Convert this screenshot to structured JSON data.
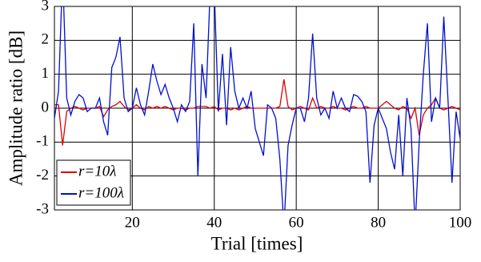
{
  "chart_data": {
    "type": "line",
    "x_label": "Trial [times]",
    "y_label": "Amplitude ratio [dB]",
    "x": [
      1,
      2,
      3,
      4,
      5,
      6,
      7,
      8,
      9,
      10,
      11,
      12,
      13,
      14,
      15,
      16,
      17,
      18,
      19,
      20,
      21,
      22,
      23,
      24,
      25,
      26,
      27,
      28,
      29,
      30,
      31,
      32,
      33,
      34,
      35,
      36,
      37,
      38,
      39,
      40,
      41,
      42,
      43,
      44,
      45,
      46,
      47,
      48,
      49,
      50,
      51,
      52,
      53,
      54,
      55,
      56,
      57,
      58,
      59,
      60,
      61,
      62,
      63,
      64,
      65,
      66,
      67,
      68,
      69,
      70,
      71,
      72,
      73,
      74,
      75,
      76,
      77,
      78,
      79,
      80,
      81,
      82,
      83,
      84,
      85,
      86,
      87,
      88,
      89,
      90,
      91,
      92,
      93,
      94,
      95,
      96,
      97,
      98,
      99,
      100
    ],
    "series": [
      {
        "name": "r=10λ",
        "color": "#e00000",
        "values": [
          0.1,
          0.1,
          -1.1,
          -0.1,
          0.0,
          0.05,
          0.0,
          -0.05,
          0.0,
          0.0,
          0.0,
          0.05,
          -0.25,
          -0.05,
          0.05,
          0.1,
          0.2,
          0.05,
          -0.05,
          0.0,
          0.1,
          0.0,
          -0.05,
          0.05,
          0.0,
          0.05,
          0.0,
          0.05,
          0.0,
          -0.05,
          0.0,
          0.0,
          -0.05,
          0.0,
          0.0,
          0.05,
          0.05,
          0.05,
          0.0,
          0.05,
          -0.05,
          0.0,
          0.0,
          -0.05,
          0.0,
          -0.05,
          0.0,
          0.05,
          0.0,
          0.0,
          0.0,
          0.0,
          0.0,
          0.0,
          0.0,
          0.05,
          0.85,
          0.05,
          -0.05,
          0.0,
          0.05,
          0.0,
          -0.05,
          0.3,
          0.0,
          0.05,
          0.0,
          0.0,
          0.05,
          0.0,
          0.0,
          -0.05,
          0.0,
          0.05,
          0.0,
          0.0,
          0.05,
          0.0,
          0.0,
          0.0,
          0.1,
          0.2,
          0.1,
          0.0,
          -0.05,
          0.05,
          0.0,
          -0.3,
          0.0,
          -0.8,
          -0.2,
          0.0,
          0.1,
          0.3,
          0.0,
          -0.05,
          0.0,
          0.05,
          0.0,
          -0.05
        ]
      },
      {
        "name": "r=100λ",
        "color": "#0010d0",
        "values": [
          -0.3,
          0.5,
          4.0,
          0.3,
          -0.2,
          0.2,
          0.4,
          0.3,
          -0.1,
          0.0,
          0.0,
          0.3,
          -0.4,
          -0.8,
          1.2,
          1.5,
          2.1,
          0.3,
          -0.1,
          0.0,
          0.6,
          0.1,
          -0.2,
          0.5,
          1.3,
          0.8,
          0.4,
          0.7,
          0.3,
          0.0,
          -0.4,
          0.1,
          -0.1,
          0.2,
          2.5,
          -2.0,
          1.3,
          0.3,
          3.5,
          3.5,
          -0.1,
          1.6,
          -0.5,
          1.8,
          0.5,
          0.0,
          0.3,
          0.0,
          0.5,
          -0.6,
          -1.0,
          -1.4,
          0.1,
          0.0,
          -0.3,
          -1.5,
          -3.5,
          -1.1,
          -0.5,
          0.0,
          0.0,
          -0.4,
          0.3,
          2.2,
          0.3,
          -0.2,
          0.0,
          -0.3,
          0.5,
          0.0,
          0.3,
          0.0,
          -0.1,
          0.4,
          0.35,
          0.2,
          -0.1,
          -2.2,
          -0.5,
          0.0,
          -0.3,
          -0.6,
          -1.3,
          -1.8,
          -0.2,
          -2.0,
          0.3,
          -0.6,
          -3.5,
          -1.0,
          1.0,
          2.5,
          -0.4,
          0.3,
          0.0,
          2.7,
          0.3,
          -2.2,
          -0.1,
          -0.9
        ]
      }
    ],
    "xlim": [
      1,
      100
    ],
    "xticks": [
      20,
      40,
      60,
      80,
      100
    ],
    "ylim": [
      -3,
      3
    ],
    "yticks": [
      -3,
      -2,
      -1,
      0,
      1,
      2,
      3
    ],
    "grid": true,
    "legend": "lower left"
  }
}
